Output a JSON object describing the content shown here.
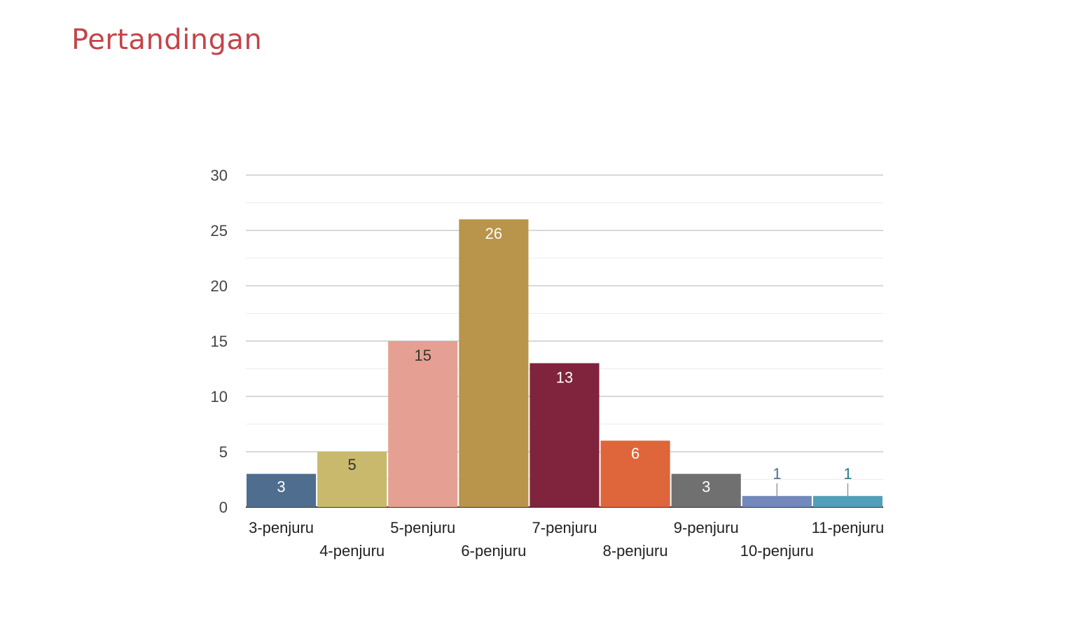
{
  "page": {
    "title": "Pertandingan"
  },
  "chart_data": {
    "type": "bar",
    "title": "",
    "xlabel": "",
    "ylabel": "",
    "ylim": [
      0,
      30
    ],
    "yticks": [
      0,
      5,
      10,
      15,
      20,
      25,
      30
    ],
    "grid": true,
    "legend": "none",
    "categories": [
      "3-penjuru",
      "4-penjuru",
      "5-penjuru",
      "6-penjuru",
      "7-penjuru",
      "8-penjuru",
      "9-penjuru",
      "10-penjuru",
      "11-penjuru"
    ],
    "values": [
      3,
      5,
      15,
      26,
      13,
      6,
      3,
      1,
      1
    ],
    "colors": [
      "#4f6e8f",
      "#c9b96c",
      "#e5a093",
      "#b8954a",
      "#80233c",
      "#df653b",
      "#707070",
      "#7388bb",
      "#529fb8"
    ],
    "label_colors": [
      "#ffffff",
      "#333333",
      "#333333",
      "#ffffff",
      "#ffffff",
      "#ffffff",
      "#ffffff",
      "#4f6e8f",
      "#2d7891"
    ]
  }
}
